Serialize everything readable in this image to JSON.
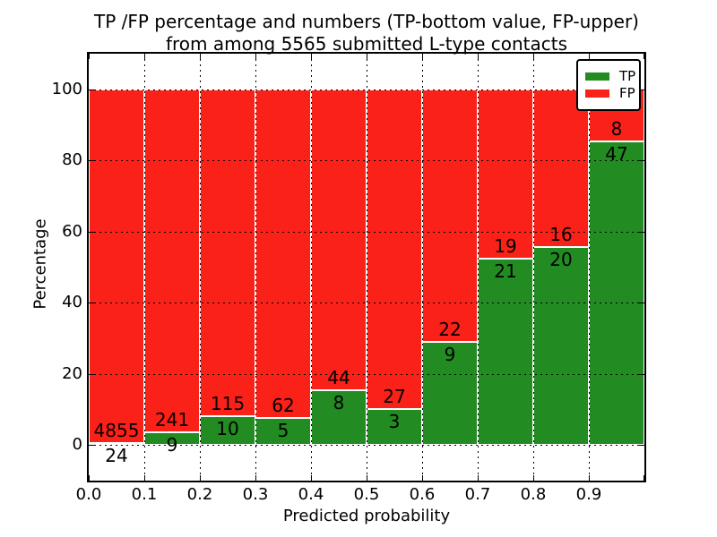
{
  "title": {
    "line1": "TP /FP percentage and numbers (TP-bottom value, FP-upper)",
    "line2": "from among 5565 submitted L-type contacts"
  },
  "axes": {
    "xlabel": "Predicted probability",
    "ylabel": "Percentage",
    "yticks": [
      "0",
      "20",
      "40",
      "60",
      "80",
      "100"
    ],
    "xticks": [
      "0.0",
      "0.1",
      "0.2",
      "0.3",
      "0.4",
      "0.5",
      "0.6",
      "0.7",
      "0.8",
      "0.9"
    ]
  },
  "legend": {
    "items": [
      {
        "label": "TP",
        "color": "#228b22"
      },
      {
        "label": "FP",
        "color": "#fa2118"
      }
    ]
  },
  "colors": {
    "tp": "#228b22",
    "fp": "#fa2118",
    "grid": "#000000",
    "background": "#ffffff"
  },
  "chart_data": {
    "type": "bar",
    "stacked": true,
    "title": "TP /FP percentage and numbers (TP-bottom value, FP-upper) from among 5565 submitted L-type contacts",
    "xlabel": "Predicted probability",
    "ylabel": "Percentage",
    "xlim": [
      0.0,
      1.0
    ],
    "ylim": [
      -10,
      110
    ],
    "grid": true,
    "legend_position": "upper right",
    "bin_width": 0.1,
    "categories": [
      "0.0-0.1",
      "0.1-0.2",
      "0.2-0.3",
      "0.3-0.4",
      "0.4-0.5",
      "0.5-0.6",
      "0.6-0.7",
      "0.7-0.8",
      "0.8-0.9",
      "0.9-1.0"
    ],
    "series": [
      {
        "name": "TP",
        "color": "#228b22",
        "counts": [
          24,
          9,
          10,
          5,
          8,
          3,
          9,
          21,
          20,
          47
        ],
        "percent": [
          0.5,
          3.6,
          8.0,
          7.5,
          15.4,
          10.0,
          29.0,
          52.5,
          55.6,
          85.5
        ]
      },
      {
        "name": "FP",
        "color": "#fa2118",
        "counts": [
          4855,
          241,
          115,
          62,
          44,
          27,
          22,
          19,
          16,
          8
        ],
        "percent": [
          99.5,
          96.4,
          92.0,
          92.5,
          84.6,
          90.0,
          71.0,
          47.5,
          44.4,
          14.5
        ]
      }
    ],
    "total_contacts": 5565
  }
}
